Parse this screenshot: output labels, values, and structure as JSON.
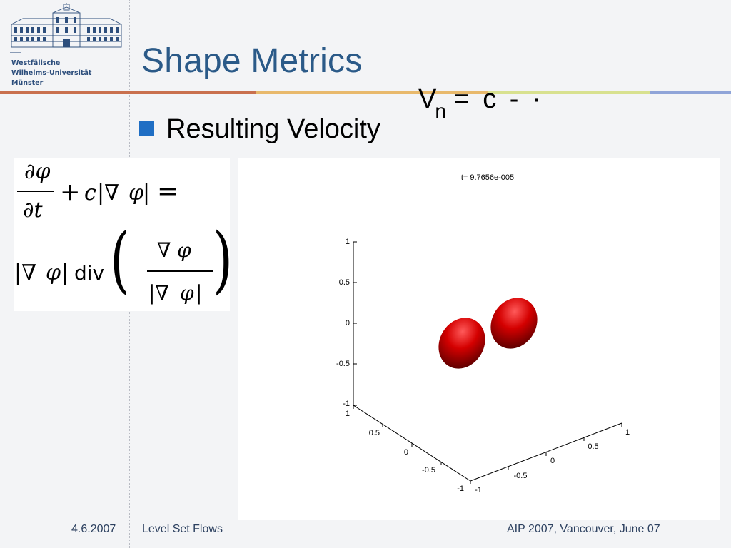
{
  "sidebar": {
    "university_lines": [
      "Westfälische",
      "Wilhelms-Universität",
      "Münster"
    ]
  },
  "slide": {
    "title": "Shape Metrics",
    "bullet": "Resulting Velocity",
    "velocity_formula": {
      "base": "V",
      "subscript": "n",
      "rest": "= c - ·"
    },
    "equation": {
      "line1": "∂φ/∂t + c|∇φ| =",
      "line2": "|∇φ| div ( ∇φ / |∇φ| )"
    }
  },
  "figure": {
    "title": "t= 9.7656e-005",
    "z_ticks": [
      "1",
      "0.5",
      "0",
      "-0.5",
      "-1"
    ],
    "x_ticks": [
      "1",
      "0.5",
      "0",
      "-0.5",
      "-1"
    ],
    "y_ticks": [
      "1",
      "0.5",
      "0",
      "-0.5",
      "-1"
    ],
    "shape_color": "#c40000"
  },
  "footer": {
    "date": "4.6.2007",
    "title": "Level Set Flows",
    "event": "AIP 2007, Vancouver, June 07"
  },
  "colors": {
    "title": "#2b5a88",
    "bullet": "#1f6ec4",
    "bands": [
      "#c9704e",
      "#e8b96c",
      "#d8e18f",
      "#8fa4d8"
    ]
  }
}
